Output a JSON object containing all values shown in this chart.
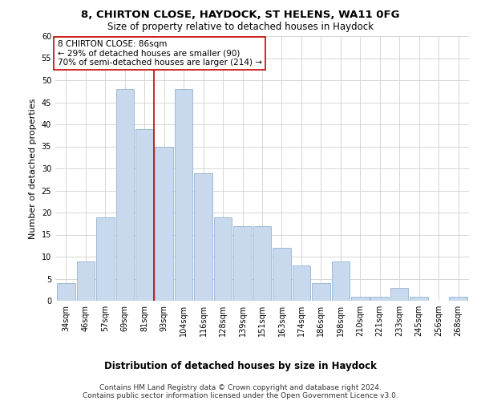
{
  "title1": "8, CHIRTON CLOSE, HAYDOCK, ST HELENS, WA11 0FG",
  "title2": "Size of property relative to detached houses in Haydock",
  "xlabel": "Distribution of detached houses by size in Haydock",
  "ylabel": "Number of detached properties",
  "bar_values": [
    4,
    9,
    19,
    48,
    39,
    35,
    48,
    29,
    19,
    17,
    17,
    12,
    8,
    4,
    9,
    1,
    1,
    3,
    1,
    0,
    1
  ],
  "bar_labels": [
    "34sqm",
    "46sqm",
    "57sqm",
    "69sqm",
    "81sqm",
    "93sqm",
    "104sqm",
    "116sqm",
    "128sqm",
    "139sqm",
    "151sqm",
    "163sqm",
    "174sqm",
    "186sqm",
    "198sqm",
    "210sqm",
    "221sqm",
    "233sqm",
    "245sqm",
    "256sqm",
    "268sqm"
  ],
  "bar_color": "#c8d9ee",
  "bar_edge_color": "#92b4d4",
  "vline_x": 4.5,
  "vline_color": "#cc0000",
  "annotation_title": "8 CHIRTON CLOSE: 86sqm",
  "annotation_line1": "← 29% of detached houses are smaller (90)",
  "annotation_line2": "70% of semi-detached houses are larger (214) →",
  "annotation_box_color": "#cc0000",
  "ylim": [
    0,
    60
  ],
  "yticks": [
    0,
    5,
    10,
    15,
    20,
    25,
    30,
    35,
    40,
    45,
    50,
    55,
    60
  ],
  "footer1": "Contains HM Land Registry data © Crown copyright and database right 2024.",
  "footer2": "Contains public sector information licensed under the Open Government Licence v3.0.",
  "title1_fontsize": 9.5,
  "title2_fontsize": 8.5,
  "ylabel_fontsize": 8,
  "xlabel_fontsize": 8.5,
  "tick_fontsize": 7,
  "annot_fontsize": 7.5,
  "footer_fontsize": 6.5
}
